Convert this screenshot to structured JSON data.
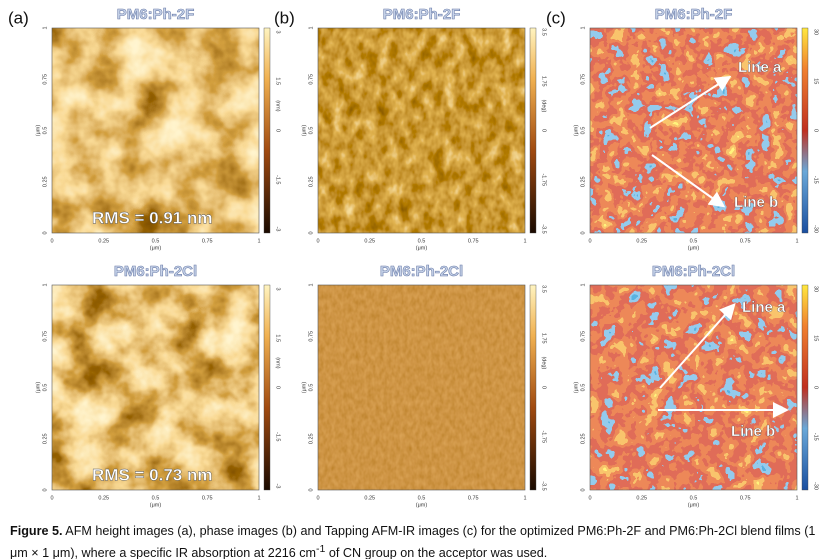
{
  "figure": {
    "panels": [
      {
        "label": "(a)",
        "title": "PM6:Ph-2F",
        "rms": "RMS = 0.91 nm",
        "colorbar_unit": "(nm)",
        "colorbar_ticks": [
          "3",
          "1.5",
          "0",
          "-1.5",
          "-3"
        ]
      },
      {
        "label": "(b)",
        "title": "PM6:Ph-2F",
        "colorbar_unit": "(deg)",
        "colorbar_ticks": [
          "3.5",
          "1.75",
          "0",
          "-1.75",
          "-3.5"
        ]
      },
      {
        "label": "(c)",
        "title": "PM6:Ph-2F",
        "annotations": [
          "Line a",
          "Line b"
        ],
        "colorbar_ticks": [
          "30",
          "15",
          "0",
          "-15",
          "-30"
        ]
      },
      {
        "title": "PM6:Ph-2Cl",
        "rms": "RMS = 0.73 nm",
        "colorbar_unit": "(nm)",
        "colorbar_ticks": [
          "3",
          "1.5",
          "0",
          "-1.5",
          "-3"
        ]
      },
      {
        "title": "PM6:Ph-2Cl",
        "colorbar_unit": "(deg)",
        "colorbar_ticks": [
          "3.5",
          "1.75",
          "0",
          "-1.75",
          "-3.5"
        ]
      },
      {
        "title": "PM6:Ph-2Cl",
        "annotations": [
          "Line a",
          "Line b"
        ],
        "colorbar_ticks": [
          "30",
          "15",
          "0",
          "-15",
          "-30"
        ]
      }
    ],
    "x_ticks": [
      "0",
      "0.25",
      "0.5",
      "0.75",
      "1"
    ],
    "y_ticks": [
      "0",
      "0.25",
      "0.5",
      "0.75",
      "1"
    ],
    "axis_unit": "(μm)",
    "caption": {
      "label": "Figure 5.",
      "text": " AFM height images (a), phase images (b) and Tapping AFM-IR images (c) for the optimized PM6:Ph-2F and PM6:Ph-2Cl blend films (1 μm × 1 μm), where a specific IR absorption at 2216 cm",
      "superscript": "-1",
      "text_end": " of CN group on the acceptor was used."
    }
  }
}
